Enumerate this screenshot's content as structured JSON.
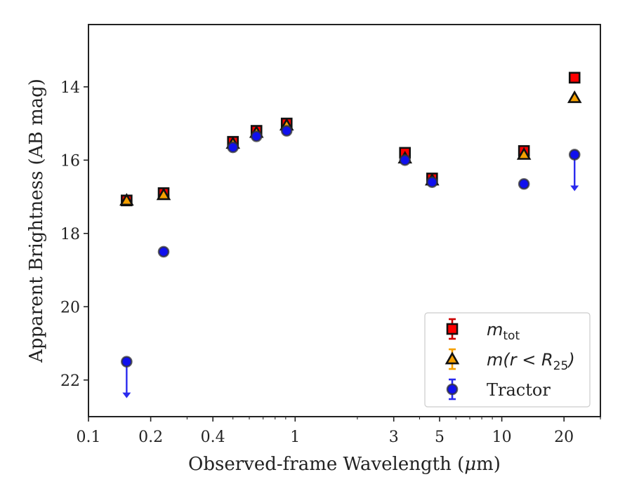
{
  "chart_data": {
    "type": "scatter",
    "xlabel_prefix": "Observed-frame Wavelength (",
    "xlabel_mu": "μ",
    "xlabel_suffix": "m)",
    "ylabel": "Apparent Brightness (AB mag)",
    "xscale": "log",
    "xlim": [
      0.1,
      30
    ],
    "ylim": [
      23,
      12.3
    ],
    "y_inverted": true,
    "x_ticks": [
      {
        "value": 0.1,
        "label": "0.1"
      },
      {
        "value": 0.2,
        "label": "0.2"
      },
      {
        "value": 0.4,
        "label": "0.4"
      },
      {
        "value": 1,
        "label": "1"
      },
      {
        "value": 3,
        "label": "3"
      },
      {
        "value": 5,
        "label": "5"
      },
      {
        "value": 10,
        "label": "10"
      },
      {
        "value": 20,
        "label": "20"
      }
    ],
    "y_ticks": [
      {
        "value": 14,
        "label": "14"
      },
      {
        "value": 16,
        "label": "16"
      },
      {
        "value": 18,
        "label": "18"
      },
      {
        "value": 20,
        "label": "20"
      },
      {
        "value": 22,
        "label": "22"
      }
    ],
    "legend_position": "lower-right",
    "series": [
      {
        "key": "mtot",
        "legend_main": "m",
        "legend_sub": "tot",
        "legend_tail": "",
        "marker": "square",
        "color": "#ff0000",
        "edge": "#111111",
        "errcolor": "#cc0000",
        "points": [
          {
            "x": 0.153,
            "y": 17.1
          },
          {
            "x": 0.231,
            "y": 16.9
          },
          {
            "x": 0.5,
            "y": 15.5
          },
          {
            "x": 0.65,
            "y": 15.2
          },
          {
            "x": 0.91,
            "y": 15.0
          },
          {
            "x": 3.4,
            "y": 15.8
          },
          {
            "x": 4.6,
            "y": 16.5
          },
          {
            "x": 12.8,
            "y": 15.75
          },
          {
            "x": 22.5,
            "y": 13.75
          }
        ]
      },
      {
        "key": "mr25",
        "legend_main": "m",
        "legend_sub": "25",
        "legend_tail": "(r < R",
        "marker": "triangle",
        "color": "#f5a000",
        "edge": "#111111",
        "errcolor": "#f5a000",
        "points": [
          {
            "x": 0.153,
            "y": 17.1
          },
          {
            "x": 0.231,
            "y": 16.95
          },
          {
            "x": 0.5,
            "y": 15.55
          },
          {
            "x": 0.65,
            "y": 15.25
          },
          {
            "x": 0.91,
            "y": 15.05
          },
          {
            "x": 3.4,
            "y": 15.95
          },
          {
            "x": 4.6,
            "y": 16.55
          },
          {
            "x": 12.8,
            "y": 15.85
          },
          {
            "x": 22.5,
            "y": 14.3
          }
        ]
      },
      {
        "key": "tractor",
        "legend_main": "Tractor",
        "legend_sub": "",
        "legend_tail": "",
        "marker": "circle",
        "color": "#1010ee",
        "edge": "#333333",
        "errcolor": "#2a2aee",
        "points": [
          {
            "x": 0.153,
            "y": 21.5,
            "upper_limit": true
          },
          {
            "x": 0.231,
            "y": 18.5
          },
          {
            "x": 0.5,
            "y": 15.65
          },
          {
            "x": 0.65,
            "y": 15.35
          },
          {
            "x": 0.91,
            "y": 15.2
          },
          {
            "x": 3.4,
            "y": 16.0
          },
          {
            "x": 4.6,
            "y": 16.6
          },
          {
            "x": 12.8,
            "y": 16.65
          },
          {
            "x": 22.5,
            "y": 15.85,
            "upper_limit": true
          }
        ]
      }
    ]
  }
}
